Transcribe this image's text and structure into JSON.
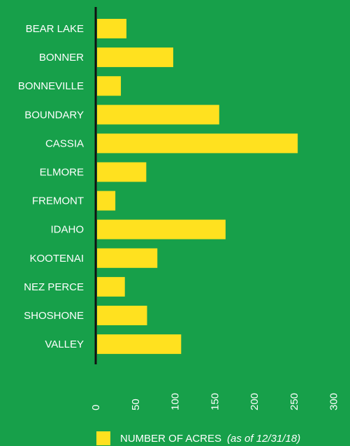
{
  "colors": {
    "background": "#17a04a",
    "bar": "#ffe11f",
    "axis": "#111111",
    "text": "#ffffff"
  },
  "chart_data": {
    "type": "bar",
    "orientation": "horizontal",
    "categories": [
      "BEAR LAKE",
      "BONNER",
      "BONNEVILLE",
      "BOUNDARY",
      "CASSIA",
      "ELMORE",
      "FREMONT",
      "IDAHO",
      "KOOTENAI",
      "NEZ PERCE",
      "SHOSHONE",
      "VALLEY"
    ],
    "series": [
      {
        "name": "NUMBER OF ACRES",
        "values": [
          37,
          96,
          30,
          154,
          253,
          62,
          23,
          162,
          76,
          35,
          63,
          106
        ]
      }
    ],
    "xlim": [
      0,
      300
    ],
    "xticks": [
      0,
      50,
      100,
      150,
      200,
      250,
      300
    ],
    "grid": false,
    "legend_position": "bottom"
  },
  "legend": {
    "label": "NUMBER OF ACRES",
    "note": "(as of 12/31/18)"
  }
}
